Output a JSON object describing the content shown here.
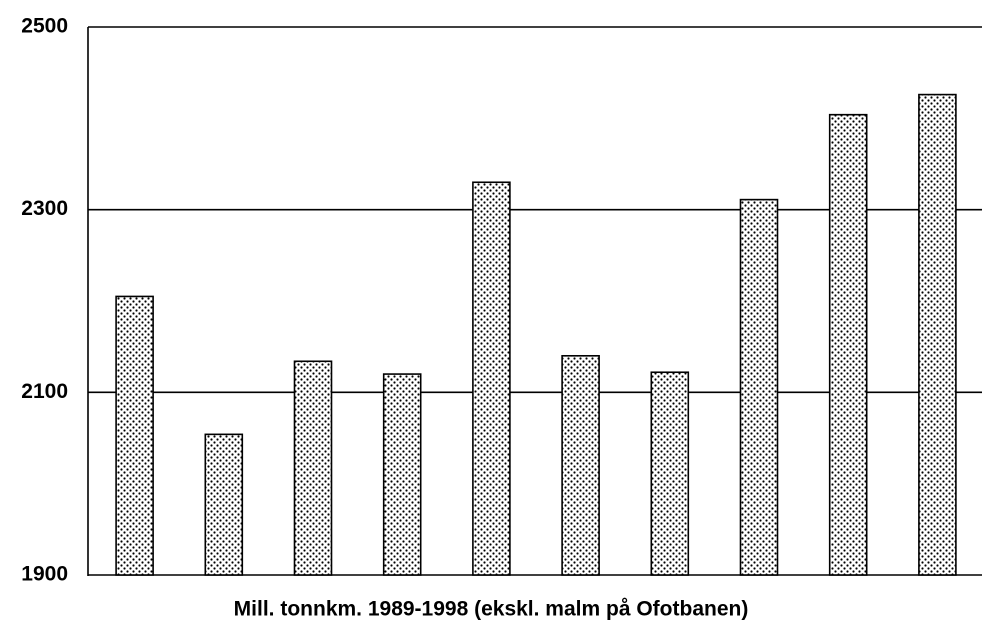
{
  "chart_data": {
    "type": "bar",
    "title": "Mill. tonnkm. 1989-1998 (ekskl. malm på Ofotbanen)",
    "categories": [
      null,
      null,
      null,
      null,
      null,
      null,
      null,
      null,
      null,
      null
    ],
    "values": [
      2205,
      2054,
      2134,
      2120,
      2330,
      2140,
      2122,
      2311,
      2404,
      2426
    ],
    "color": "#000000",
    "ylim": [
      1900,
      2500
    ],
    "yticks": [
      1900,
      2100,
      2300,
      2500
    ],
    "grid": true
  }
}
